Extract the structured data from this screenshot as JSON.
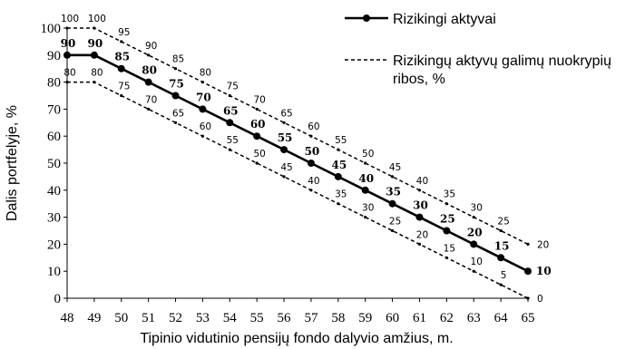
{
  "chart_data": {
    "type": "line",
    "title": "",
    "xlabel": "Tipinio vidutinio pensijų fondo dalyvio amžius, m.",
    "ylabel": "Dalis portfelyje, %",
    "x": [
      48,
      49,
      50,
      51,
      52,
      53,
      54,
      55,
      56,
      57,
      58,
      59,
      60,
      61,
      62,
      63,
      64,
      65
    ],
    "xlim": [
      48,
      65
    ],
    "ylim": [
      0,
      100
    ],
    "yticks": [
      0,
      10,
      20,
      30,
      40,
      50,
      60,
      70,
      80,
      90,
      100
    ],
    "grid": false,
    "legend": "top-right",
    "series": [
      {
        "name": "Rizikingi aktyvai",
        "style": "solid-markers",
        "color": "#000000",
        "values": [
          90,
          90,
          85,
          80,
          75,
          70,
          65,
          60,
          55,
          50,
          45,
          40,
          35,
          30,
          25,
          20,
          15,
          10
        ]
      },
      {
        "name": "Rizikingų aktyvų galimų nuokrypių ribos, %",
        "style": "dashed",
        "color": "#000000",
        "values": [
          100,
          100,
          95,
          90,
          85,
          80,
          75,
          70,
          65,
          60,
          55,
          50,
          45,
          40,
          35,
          30,
          25,
          20
        ]
      },
      {
        "name": "",
        "style": "dashed",
        "color": "#000000",
        "values": [
          80,
          80,
          75,
          70,
          65,
          60,
          55,
          50,
          45,
          40,
          35,
          30,
          25,
          20,
          15,
          10,
          5,
          0
        ]
      }
    ],
    "legend_entries": [
      "Rizikingi aktyvai",
      "Rizikingų aktyvų galimų nuokrypių ribos, %"
    ]
  }
}
